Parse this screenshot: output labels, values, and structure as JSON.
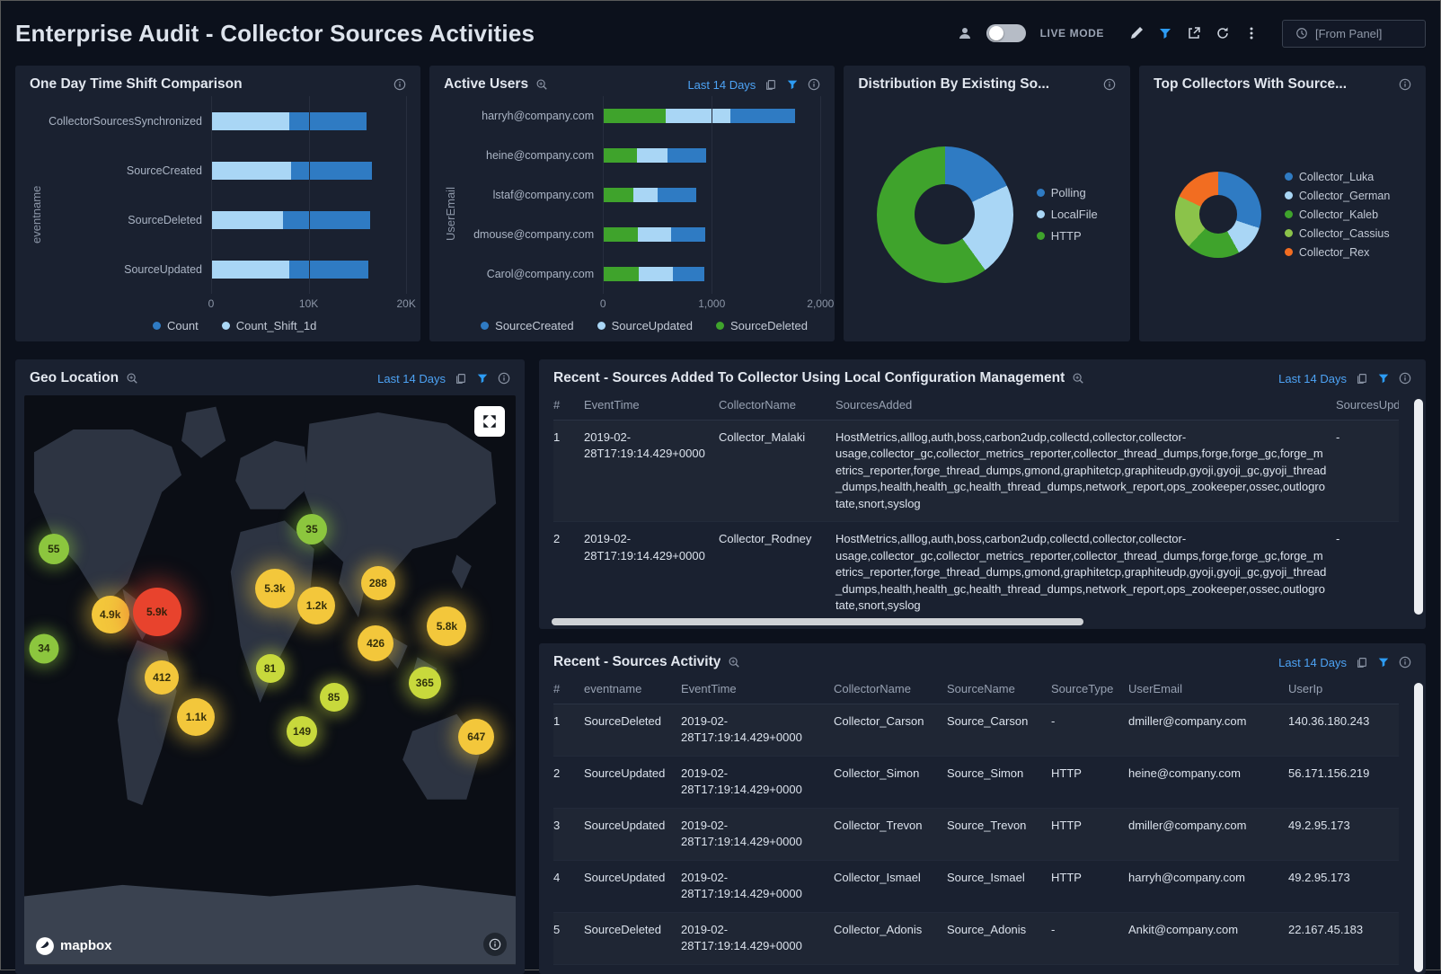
{
  "header": {
    "title": "Enterprise Audit - Collector Sources Activities",
    "live_mode_label": "LIVE MODE",
    "from_panel_label": "[From Panel]"
  },
  "icons": {
    "user": "user-silhouette",
    "live_mode_toggle": "toggle-switch",
    "edit": "pencil",
    "filter": "funnel",
    "share": "share-arrow",
    "refresh": "circular-arrow",
    "more": "kebab-dots",
    "clock": "clock",
    "info": "info-circle",
    "zoom": "magnifier-plus",
    "copy": "overlapping-pages",
    "expand": "expand-arrows",
    "mapbox": "mapbox-logo"
  },
  "accent_colors": {
    "blue": "#2f7bc3",
    "light_blue": "#a9d6f5",
    "green": "#3fa32c",
    "light_green": "#8bc34a",
    "orange": "#f26d21",
    "link_blue": "#4da3f5",
    "filter_blue": "#2d9cf4"
  },
  "panels": {
    "time_shift": {
      "title": "One Day Time Shift Comparison",
      "y_axis_label": "eventname"
    },
    "active_users": {
      "title": "Active Users",
      "time_range": "Last 14 Days",
      "y_axis_label": "UserEmail"
    },
    "distribution": {
      "title": "Distribution By Existing So..."
    },
    "top_collectors": {
      "title": "Top Collectors With Source..."
    },
    "geo": {
      "title": "Geo Location",
      "time_range": "Last 14 Days",
      "mapbox_label": "mapbox",
      "markers": [
        {
          "label": "55",
          "x": 6,
          "y": 27,
          "size": 34,
          "color": "#8cc63e"
        },
        {
          "label": "35",
          "x": 58.5,
          "y": 23.5,
          "size": 34,
          "color": "#8cc63e"
        },
        {
          "label": "34",
          "x": 4,
          "y": 44.5,
          "size": 33,
          "color": "#8cc63e"
        },
        {
          "label": "4.9k",
          "x": 17.5,
          "y": 38.5,
          "size": 42,
          "color": "#f3c73b"
        },
        {
          "label": "5.9k",
          "x": 27,
          "y": 38,
          "size": 54,
          "color": "#e8432d"
        },
        {
          "label": "412",
          "x": 28,
          "y": 49.5,
          "size": 38,
          "color": "#f3c73b"
        },
        {
          "label": "1.1k",
          "x": 35,
          "y": 56.5,
          "size": 42,
          "color": "#f3c73b"
        },
        {
          "label": "5.3k",
          "x": 51,
          "y": 34,
          "size": 44,
          "color": "#f3c73b"
        },
        {
          "label": "1.2k",
          "x": 59.5,
          "y": 37,
          "size": 42,
          "color": "#f3c73b"
        },
        {
          "label": "288",
          "x": 72,
          "y": 33,
          "size": 38,
          "color": "#f3c73b"
        },
        {
          "label": "81",
          "x": 50,
          "y": 48,
          "size": 32,
          "color": "#c8d93c"
        },
        {
          "label": "85",
          "x": 63,
          "y": 53,
          "size": 32,
          "color": "#c8d93c"
        },
        {
          "label": "149",
          "x": 56.5,
          "y": 59,
          "size": 34,
          "color": "#c8d93c"
        },
        {
          "label": "426",
          "x": 71.5,
          "y": 43.5,
          "size": 40,
          "color": "#f3c73b"
        },
        {
          "label": "365",
          "x": 81.5,
          "y": 50.5,
          "size": 36,
          "color": "#c8d93c"
        },
        {
          "label": "5.8k",
          "x": 86,
          "y": 40.5,
          "size": 44,
          "color": "#f3c73b"
        },
        {
          "label": "647",
          "x": 92,
          "y": 60,
          "size": 40,
          "color": "#f3c73b"
        }
      ]
    },
    "sources_added": {
      "title": "Recent - Sources Added To Collector Using Local Configuration Management",
      "time_range": "Last 14 Days",
      "columns": [
        "#",
        "EventTime",
        "CollectorName",
        "SourcesAdded",
        "SourcesUpdated"
      ],
      "rows": [
        [
          "1",
          "2019-02-28T17:19:14.429+0000",
          "Collector_Malaki",
          "HostMetrics,alllog,auth,boss,carbon2udp,collectd,collector,collector-usage,collector_gc,collector_metrics_reporter,collector_thread_dumps,forge,forge_gc,forge_metrics_reporter,forge_thread_dumps,gmond,graphitetcp,graphiteudp,gyoji,gyoji_gc,gyoji_thread_dumps,health,health_gc,health_thread_dumps,network_report,ops_zookeeper,ossec,outlogrotate,snort,syslog",
          "-"
        ],
        [
          "2",
          "2019-02-28T17:19:14.429+0000",
          "Collector_Rodney",
          "HostMetrics,alllog,auth,boss,carbon2udp,collectd,collector,collector-usage,collector_gc,collector_metrics_reporter,collector_thread_dumps,forge,forge_gc,forge_metrics_reporter,forge_thread_dumps,gmond,graphitetcp,graphiteudp,gyoji,gyoji_gc,gyoji_thread_dumps,health,health_gc,health_thread_dumps,network_report,ops_zookeeper,ossec,outlogrotate,snort,syslog",
          "-"
        ]
      ]
    },
    "sources_activity": {
      "title": "Recent - Sources Activity",
      "time_range": "Last 14 Days",
      "columns": [
        "#",
        "eventname",
        "EventTime",
        "CollectorName",
        "SourceName",
        "SourceType",
        "UserEmail",
        "UserIp"
      ],
      "rows": [
        [
          "1",
          "SourceDeleted",
          "2019-02-28T17:19:14.429+0000",
          "Collector_Carson",
          "Source_Carson",
          "-",
          "dmiller@company.com",
          "140.36.180.243"
        ],
        [
          "2",
          "SourceUpdated",
          "2019-02-28T17:19:14.429+0000",
          "Collector_Simon",
          "Source_Simon",
          "HTTP",
          "heine@company.com",
          "56.171.156.219"
        ],
        [
          "3",
          "SourceUpdated",
          "2019-02-28T17:19:14.429+0000",
          "Collector_Trevon",
          "Source_Trevon",
          "HTTP",
          "dmiller@company.com",
          "49.2.95.173"
        ],
        [
          "4",
          "SourceUpdated",
          "2019-02-28T17:19:14.429+0000",
          "Collector_Ismael",
          "Source_Ismael",
          "HTTP",
          "harryh@company.com",
          "49.2.95.173"
        ],
        [
          "5",
          "SourceDeleted",
          "2019-02-28T17:19:14.429+0000",
          "Collector_Adonis",
          "Source_Adonis",
          "-",
          "Ankit@company.com",
          "22.167.45.183"
        ]
      ]
    }
  },
  "chart_data": [
    {
      "id": "one_day_time_shift",
      "type": "bar",
      "orientation": "horizontal",
      "stacked": true,
      "title": "One Day Time Shift Comparison",
      "xlabel": "",
      "ylabel": "eventname",
      "xlim": [
        0,
        20000
      ],
      "x_ticks": [
        "0",
        "10K",
        "20K"
      ],
      "categories": [
        "CollectorSourcesSynchronized",
        "SourceCreated",
        "SourceDeleted",
        "SourceUpdated"
      ],
      "series": [
        {
          "name": "Count_Shift_1d",
          "color": "#a9d6f5",
          "values": [
            8000,
            8200,
            7400,
            8000
          ]
        },
        {
          "name": "Count",
          "color": "#2f7bc3",
          "values": [
            7900,
            8300,
            8900,
            8100
          ]
        }
      ],
      "legend": [
        {
          "label": "Count",
          "color": "#2f7bc3"
        },
        {
          "label": "Count_Shift_1d",
          "color": "#a9d6f5"
        }
      ],
      "legend_position": "bottom",
      "grid": true
    },
    {
      "id": "active_users",
      "type": "bar",
      "orientation": "horizontal",
      "stacked": true,
      "title": "Active Users",
      "xlabel": "",
      "ylabel": "UserEmail",
      "xlim": [
        0,
        2000
      ],
      "x_ticks": [
        "0",
        "1,000",
        "2,000"
      ],
      "categories": [
        "harryh@company.com",
        "heine@company.com",
        "lstaf@company.com",
        "dmouse@company.com",
        "Carol@company.com"
      ],
      "series": [
        {
          "name": "SourceDeleted",
          "color": "#3fa32c",
          "values": [
            580,
            310,
            280,
            320,
            330
          ]
        },
        {
          "name": "SourceUpdated",
          "color": "#a9d6f5",
          "values": [
            590,
            280,
            220,
            310,
            310
          ]
        },
        {
          "name": "SourceCreated",
          "color": "#2f7bc3",
          "values": [
            600,
            360,
            360,
            310,
            290
          ]
        }
      ],
      "legend": [
        {
          "label": "SourceCreated",
          "color": "#2f7bc3"
        },
        {
          "label": "SourceUpdated",
          "color": "#a9d6f5"
        },
        {
          "label": "SourceDeleted",
          "color": "#3fa32c"
        }
      ],
      "legend_position": "bottom",
      "grid": true
    },
    {
      "id": "distribution_by_existing_source",
      "type": "pie",
      "title": "Distribution By Existing So...",
      "labels": [
        "Polling",
        "LocalFile",
        "HTTP"
      ],
      "values": [
        18,
        22,
        60
      ],
      "colors": [
        "#2f7bc3",
        "#a9d6f5",
        "#3fa32c"
      ],
      "legend_position": "right"
    },
    {
      "id": "top_collectors",
      "type": "pie",
      "title": "Top Collectors With Source...",
      "labels": [
        "Collector_Luka",
        "Collector_German",
        "Collector_Kaleb",
        "Collector_Cassius",
        "Collector_Rex"
      ],
      "values": [
        30,
        12,
        20,
        20,
        18
      ],
      "colors": [
        "#2f7bc3",
        "#a9d6f5",
        "#3fa32c",
        "#8bc34a",
        "#f26d21"
      ],
      "legend_position": "right"
    }
  ]
}
